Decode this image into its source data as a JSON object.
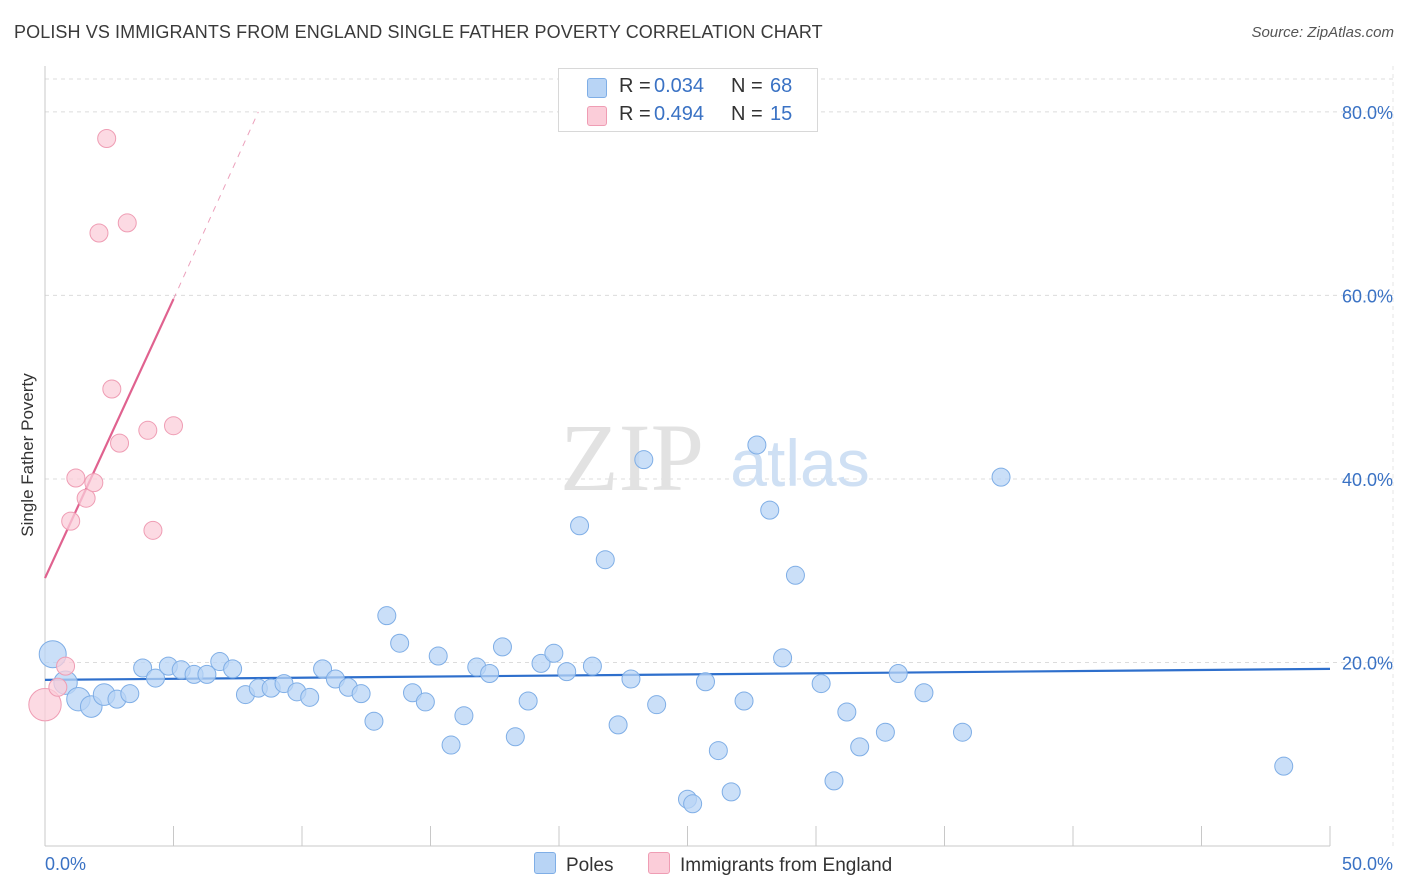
{
  "title": "POLISH VS IMMIGRANTS FROM ENGLAND SINGLE FATHER POVERTY CORRELATION CHART",
  "source": "Source: ZipAtlas.com",
  "watermark": {
    "zip": "ZIP",
    "atlas": "atlas"
  },
  "legend": {
    "rows": [
      {
        "r_label": "R = ",
        "r_value": "0.034",
        "n_label": "N = ",
        "n_value": "68"
      },
      {
        "r_label": "R = ",
        "r_value": "0.494",
        "n_label": "N = ",
        "n_value": "15"
      }
    ]
  },
  "bottom_legend": {
    "poles": "Poles",
    "england": "Immigrants from England"
  },
  "colors": {
    "poles_fill": "#b8d4f5",
    "poles_stroke": "#7faee6",
    "poles_line": "#2e6fcc",
    "england_fill": "#fbcdd9",
    "england_stroke": "#ef9db4",
    "england_line": "#e0628f",
    "tick_label": "#3a72c4",
    "grid": "#dcdcdc"
  },
  "chart_data": {
    "type": "scatter",
    "title": "POLISH VS IMMIGRANTS FROM ENGLAND SINGLE FATHER POVERTY CORRELATION CHART",
    "xlabel": "",
    "ylabel": "Single Father Poverty",
    "xlim": [
      0,
      50
    ],
    "ylim": [
      0,
      85
    ],
    "x_tick_labels": [
      "0.0%",
      "50.0%"
    ],
    "y_ticks": [
      20,
      40,
      60,
      80
    ],
    "y_tick_labels": [
      "20.0%",
      "40.0%",
      "60.0%",
      "80.0%"
    ],
    "series": [
      {
        "name": "Poles",
        "r": 0.034,
        "n": 68,
        "trend": {
          "x0": 0,
          "y0": 18.1,
          "x1": 50,
          "y1": 19.3
        },
        "points": [
          [
            0.3,
            20.9,
            1.5
          ],
          [
            0.8,
            17.8,
            1.3
          ],
          [
            1.3,
            16.0,
            1.3
          ],
          [
            1.8,
            15.2,
            1.2
          ],
          [
            2.3,
            16.5,
            1.2
          ],
          [
            2.8,
            16.0,
            1.0
          ],
          [
            3.3,
            16.6,
            1.0
          ],
          [
            3.8,
            19.4,
            1.0
          ],
          [
            4.3,
            18.3,
            1.0
          ],
          [
            4.8,
            19.6,
            1.0
          ],
          [
            5.3,
            19.2,
            1.0
          ],
          [
            5.8,
            18.7,
            1.0
          ],
          [
            6.3,
            18.7,
            1.0
          ],
          [
            6.8,
            20.1,
            1.0
          ],
          [
            7.3,
            19.3,
            1.0
          ],
          [
            7.8,
            16.5,
            1.0
          ],
          [
            8.3,
            17.2,
            1.0
          ],
          [
            8.8,
            17.2,
            1.0
          ],
          [
            9.3,
            17.7,
            1.0
          ],
          [
            9.8,
            16.8,
            1.0
          ],
          [
            10.3,
            16.2,
            1.0
          ],
          [
            10.8,
            19.3,
            1.0
          ],
          [
            11.3,
            18.2,
            1.0
          ],
          [
            11.8,
            17.3,
            1.0
          ],
          [
            12.3,
            16.6,
            1.0
          ],
          [
            12.8,
            13.6,
            1.0
          ],
          [
            13.3,
            25.1,
            1.0
          ],
          [
            13.8,
            22.1,
            1.0
          ],
          [
            14.3,
            16.7,
            1.0
          ],
          [
            14.8,
            15.7,
            1.0
          ],
          [
            15.3,
            20.7,
            1.0
          ],
          [
            15.8,
            11.0,
            1.0
          ],
          [
            16.3,
            14.2,
            1.0
          ],
          [
            16.8,
            19.5,
            1.0
          ],
          [
            17.3,
            18.8,
            1.0
          ],
          [
            17.8,
            21.7,
            1.0
          ],
          [
            18.3,
            11.9,
            1.0
          ],
          [
            18.8,
            15.8,
            1.0
          ],
          [
            19.3,
            19.9,
            1.0
          ],
          [
            19.8,
            21.0,
            1.0
          ],
          [
            20.3,
            19.0,
            1.0
          ],
          [
            20.8,
            34.9,
            1.0
          ],
          [
            21.3,
            19.6,
            1.0
          ],
          [
            21.8,
            31.2,
            1.0
          ],
          [
            22.3,
            13.2,
            1.0
          ],
          [
            22.8,
            18.2,
            1.0
          ],
          [
            23.3,
            42.1,
            1.0
          ],
          [
            23.8,
            15.4,
            1.0
          ],
          [
            25.0,
            5.1,
            1.0
          ],
          [
            25.2,
            4.6,
            1.0
          ],
          [
            25.7,
            17.9,
            1.0
          ],
          [
            26.2,
            10.4,
            1.0
          ],
          [
            26.7,
            5.9,
            1.0
          ],
          [
            27.2,
            15.8,
            1.0
          ],
          [
            27.7,
            43.7,
            1.0
          ],
          [
            28.2,
            36.6,
            1.0
          ],
          [
            28.7,
            20.5,
            1.0
          ],
          [
            29.2,
            29.5,
            1.0
          ],
          [
            30.2,
            17.7,
            1.0
          ],
          [
            30.7,
            7.1,
            1.0
          ],
          [
            31.2,
            14.6,
            1.0
          ],
          [
            31.7,
            10.8,
            1.0
          ],
          [
            32.7,
            12.4,
            1.0
          ],
          [
            33.2,
            18.8,
            1.0
          ],
          [
            34.2,
            16.7,
            1.0
          ],
          [
            35.7,
            12.4,
            1.0
          ],
          [
            37.2,
            40.2,
            1.0
          ],
          [
            48.2,
            8.7,
            1.0
          ]
        ]
      },
      {
        "name": "Immigrants from England",
        "r": 0.494,
        "n": 15,
        "trend": {
          "x0": 0,
          "y0": 29.2,
          "x1": 5.0,
          "y1": 59.6,
          "dash_x1": 8.3,
          "dash_y1": 80.0
        },
        "points": [
          [
            0.0,
            15.4,
            1.8
          ],
          [
            0.5,
            17.3,
            1.0
          ],
          [
            0.8,
            19.6,
            1.0
          ],
          [
            1.0,
            35.4,
            1.0
          ],
          [
            1.2,
            40.1,
            1.0
          ],
          [
            1.6,
            37.9,
            1.0
          ],
          [
            1.9,
            39.6,
            1.0
          ],
          [
            2.1,
            66.8,
            1.0
          ],
          [
            2.4,
            77.1,
            1.0
          ],
          [
            2.6,
            49.8,
            1.0
          ],
          [
            2.9,
            43.9,
            1.0
          ],
          [
            3.2,
            67.9,
            1.0
          ],
          [
            4.0,
            45.3,
            1.0
          ],
          [
            4.2,
            34.4,
            1.0
          ],
          [
            5.0,
            45.8,
            1.0
          ]
        ]
      }
    ]
  }
}
